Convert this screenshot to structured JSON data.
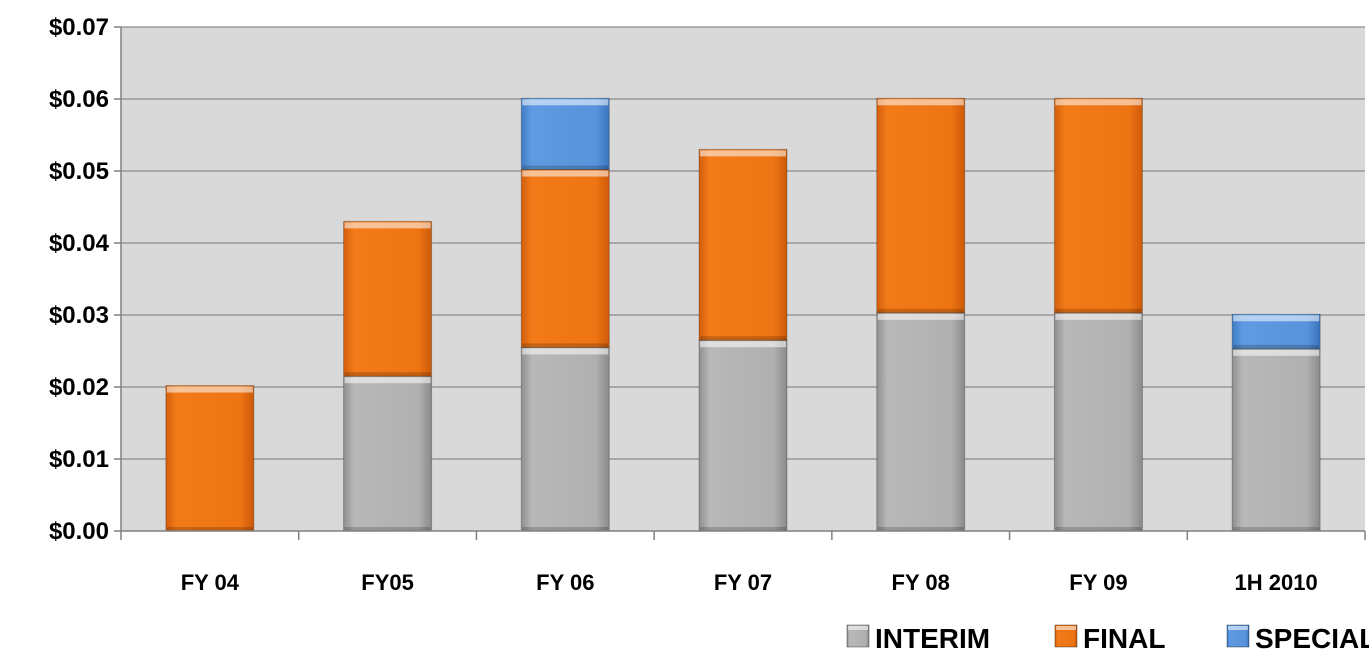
{
  "chart_data": {
    "type": "bar",
    "stacked": true,
    "categories": [
      "FY 04",
      "FY05",
      "FY 06",
      "FY 07",
      "FY 08",
      "FY 09",
      "1H 2010"
    ],
    "series": [
      {
        "name": "INTERIM",
        "color": "#b3b3b3",
        "values": [
          0,
          0.0215,
          0.0255,
          0.0265,
          0.0303,
          0.0303,
          0.0253
        ]
      },
      {
        "name": "FINAL",
        "color": "#f07818",
        "values": [
          0.0202,
          0.0215,
          0.0247,
          0.0265,
          0.0298,
          0.0298,
          0
        ]
      },
      {
        "name": "SPECIAL",
        "color": "#5b97dc",
        "values": [
          0,
          0,
          0.0099,
          0,
          0,
          0,
          0.0048
        ]
      }
    ],
    "yticks": [
      "$0.00",
      "$0.01",
      "$0.02",
      "$0.03",
      "$0.04",
      "$0.05",
      "$0.06",
      "$0.07"
    ],
    "ylim": [
      0,
      0.07
    ],
    "grid": true,
    "plot_background": "#d9d9d9",
    "legend_position": "bottom-right"
  }
}
